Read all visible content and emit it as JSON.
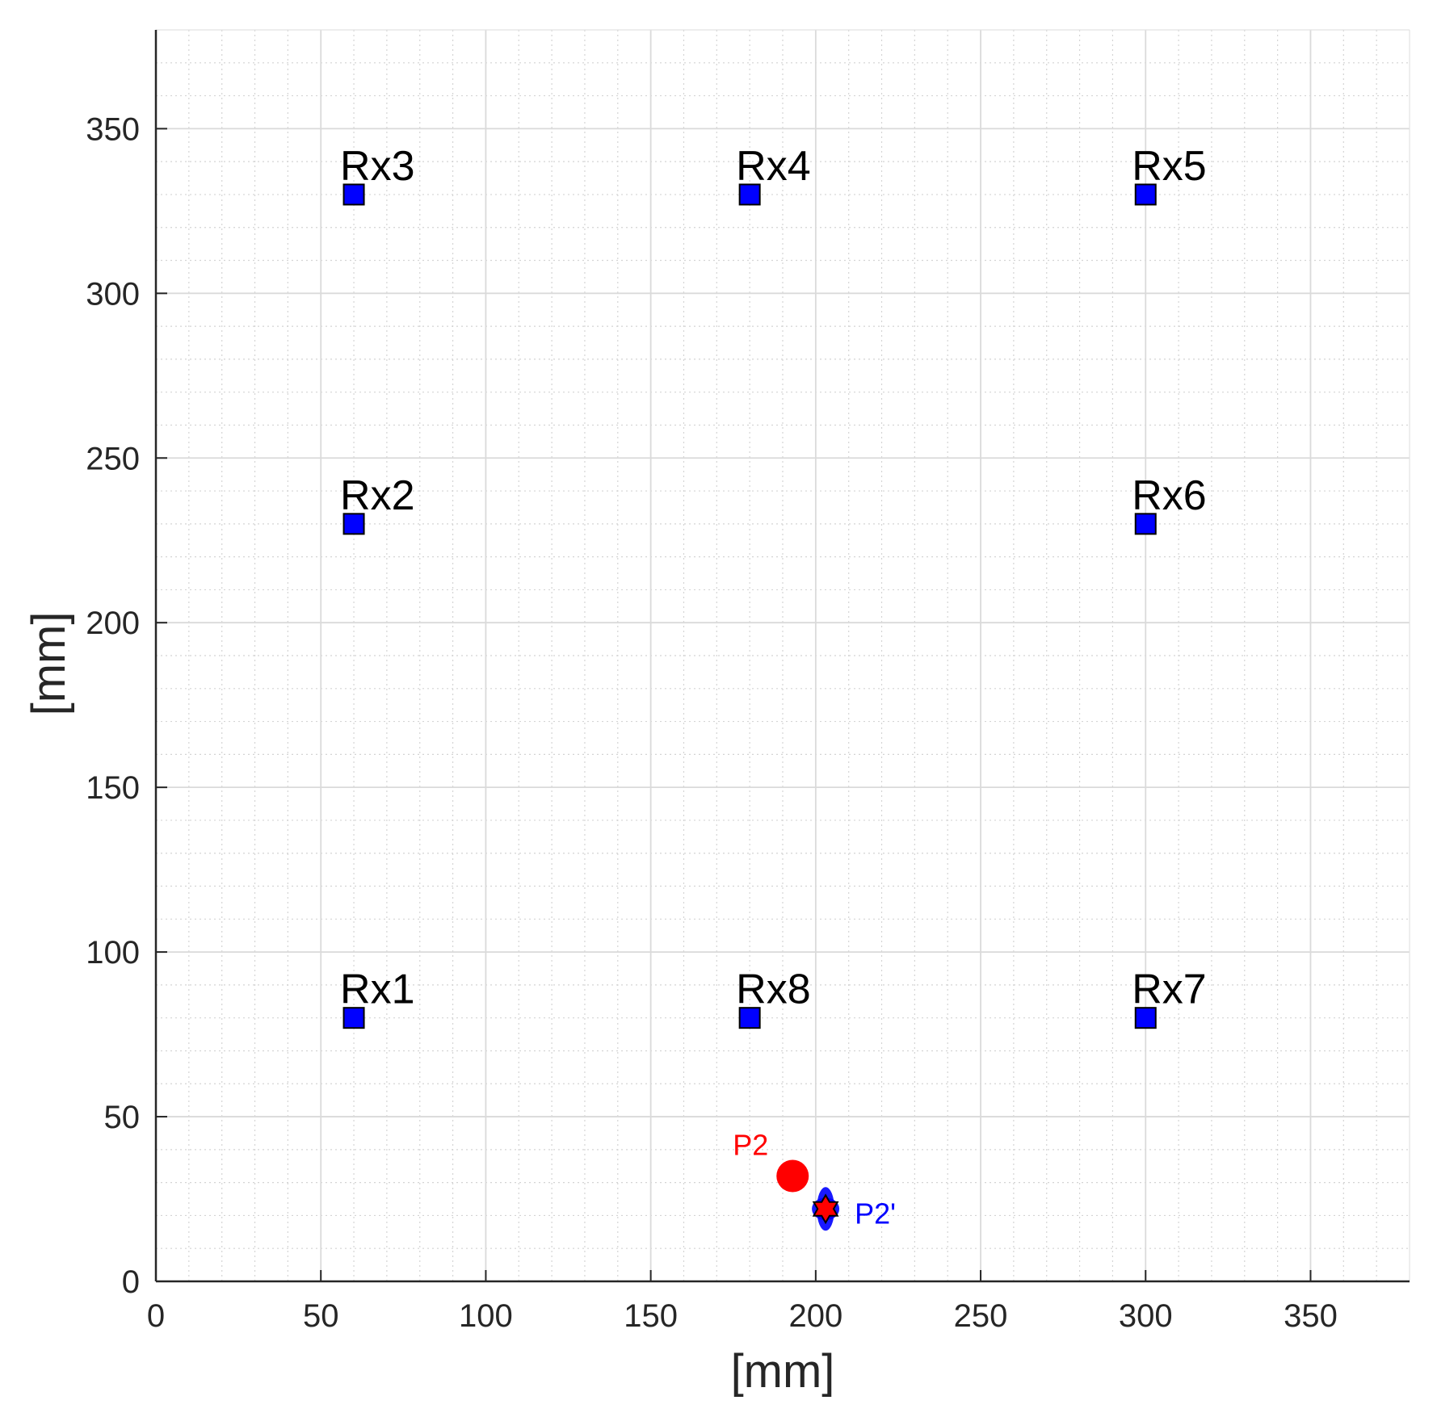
{
  "chart_data": {
    "type": "scatter",
    "title": "",
    "xlabel": "[mm]",
    "ylabel": "[mm]",
    "xlim": [
      0,
      380
    ],
    "ylim": [
      0,
      380
    ],
    "x_ticks": [
      0,
      50,
      100,
      150,
      200,
      250,
      300,
      350
    ],
    "y_ticks": [
      0,
      50,
      100,
      150,
      200,
      250,
      300,
      350
    ],
    "grid": true,
    "minor_grid": true,
    "series": [
      {
        "marker": "square",
        "color": "#0000ff",
        "points": [
          {
            "x": 60,
            "y": 80,
            "label": "Rx1"
          },
          {
            "x": 60,
            "y": 230,
            "label": "Rx2"
          },
          {
            "x": 60,
            "y": 330,
            "label": "Rx3"
          },
          {
            "x": 180,
            "y": 330,
            "label": "Rx4"
          },
          {
            "x": 300,
            "y": 330,
            "label": "Rx5"
          },
          {
            "x": 300,
            "y": 230,
            "label": "Rx6"
          },
          {
            "x": 300,
            "y": 80,
            "label": "Rx7"
          },
          {
            "x": 180,
            "y": 80,
            "label": "Rx8"
          }
        ]
      },
      {
        "marker": "circle",
        "color": "#ff0000",
        "points": [
          {
            "x": 193,
            "y": 32,
            "label": "P2"
          }
        ]
      },
      {
        "marker": "hexagram",
        "color": "#ff0000",
        "spread_color": "#0000ff",
        "points": [
          {
            "x": 203,
            "y": 22,
            "label": "P2'",
            "label_color": "#0000ff"
          }
        ]
      }
    ]
  }
}
